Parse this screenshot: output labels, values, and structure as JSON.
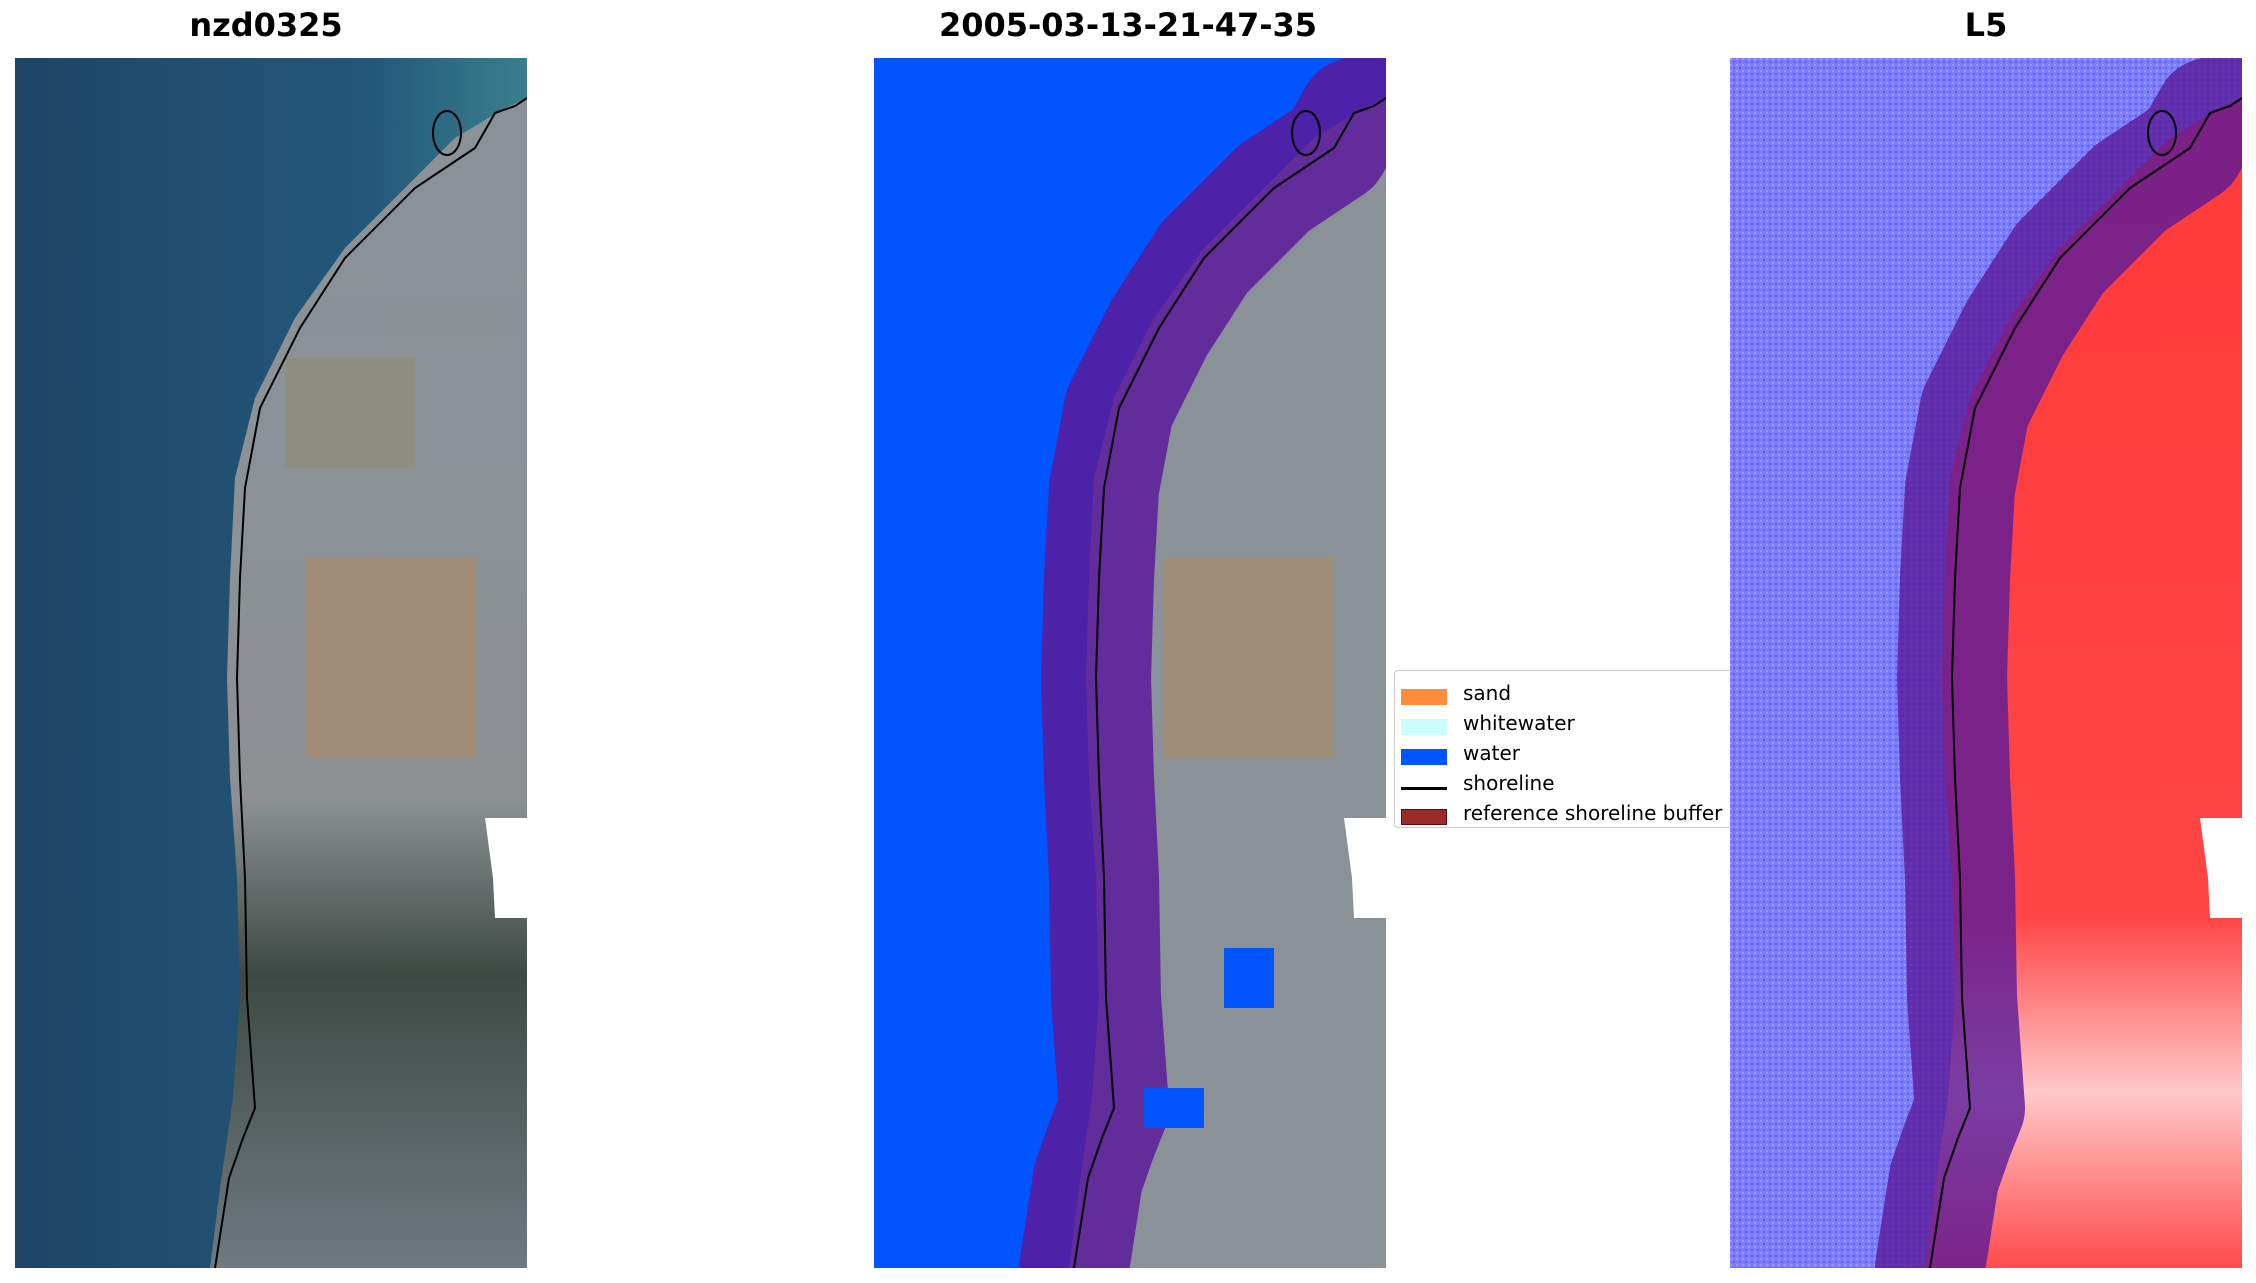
{
  "panels": [
    {
      "title": "nzd0325"
    },
    {
      "title": "2005-03-13-21-47-35"
    },
    {
      "title": "L5"
    }
  ],
  "legend": {
    "items": [
      {
        "label": "sand",
        "color": "#ff8c3a"
      },
      {
        "label": "whitewater",
        "color": "#ccfdfd"
      },
      {
        "label": "water",
        "color": "#0055ff"
      },
      {
        "label": "shoreline",
        "color": "#000000"
      },
      {
        "label": "reference shoreline buffer",
        "color": "#9b2a2a"
      }
    ]
  },
  "colors": {
    "sea_rgb": "#1f4f73",
    "land_rgb": "#8a9196",
    "water_class": "#0055ff",
    "buffer": "#8b1a6a",
    "index_water": "#7b7bff",
    "index_land": "#ff3030"
  }
}
